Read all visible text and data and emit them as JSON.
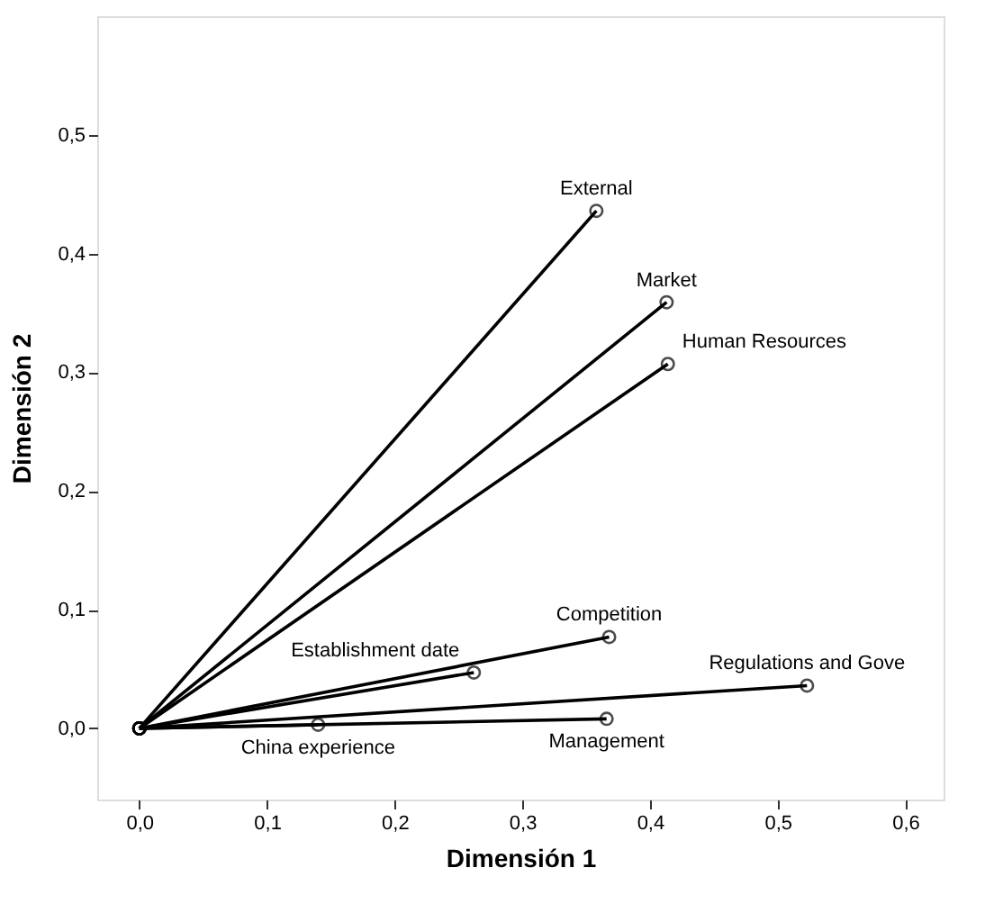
{
  "chart_data": {
    "type": "line",
    "xlabel": "Dimensión 1",
    "ylabel": "Dimensión 2",
    "xlim": [
      -0.033,
      0.63
    ],
    "ylim": [
      -0.06,
      0.6
    ],
    "xticks": [
      {
        "value": 0,
        "label": "0,0"
      },
      {
        "value": 0.1,
        "label": "0,1"
      },
      {
        "value": 0.2,
        "label": "0,2"
      },
      {
        "value": 0.3,
        "label": "0,3"
      },
      {
        "value": 0.4,
        "label": "0,4"
      },
      {
        "value": 0.5,
        "label": "0,5"
      },
      {
        "value": 0.6,
        "label": "0,6"
      }
    ],
    "yticks": [
      {
        "value": 0,
        "label": "0,0"
      },
      {
        "value": 0.1,
        "label": "0,1"
      },
      {
        "value": 0.2,
        "label": "0,2"
      },
      {
        "value": 0.3,
        "label": "0,3"
      },
      {
        "value": 0.4,
        "label": "0,4"
      },
      {
        "value": 0.5,
        "label": "0,5"
      }
    ],
    "grid": false,
    "legend": false,
    "marker": "circle",
    "line_style": "solid",
    "series": [
      {
        "name": "External",
        "color": "#000000",
        "x": [
          0,
          0.358
        ],
        "values": [
          0,
          0.436
        ]
      },
      {
        "name": "Market",
        "color": "#000000",
        "x": [
          0,
          0.413
        ],
        "values": [
          0,
          0.359
        ]
      },
      {
        "name": "Human Resources",
        "color": "#000000",
        "x": [
          0,
          0.414
        ],
        "values": [
          0,
          0.307
        ]
      },
      {
        "name": "Competition",
        "color": "#000000",
        "x": [
          0,
          0.368
        ],
        "values": [
          0,
          0.077
        ]
      },
      {
        "name": "Establishment date",
        "color": "#000000",
        "x": [
          0,
          0.262
        ],
        "values": [
          0,
          0.047
        ]
      },
      {
        "name": "Regulations and Gove",
        "color": "#000000",
        "x": [
          0,
          0.523
        ],
        "values": [
          0,
          0.036
        ]
      },
      {
        "name": "Management",
        "color": "#000000",
        "x": [
          0,
          0.366
        ],
        "values": [
          0,
          0.008
        ]
      },
      {
        "name": "China experience",
        "color": "#000000",
        "x": [
          0,
          0.14
        ],
        "values": [
          0,
          0.003
        ]
      }
    ]
  }
}
